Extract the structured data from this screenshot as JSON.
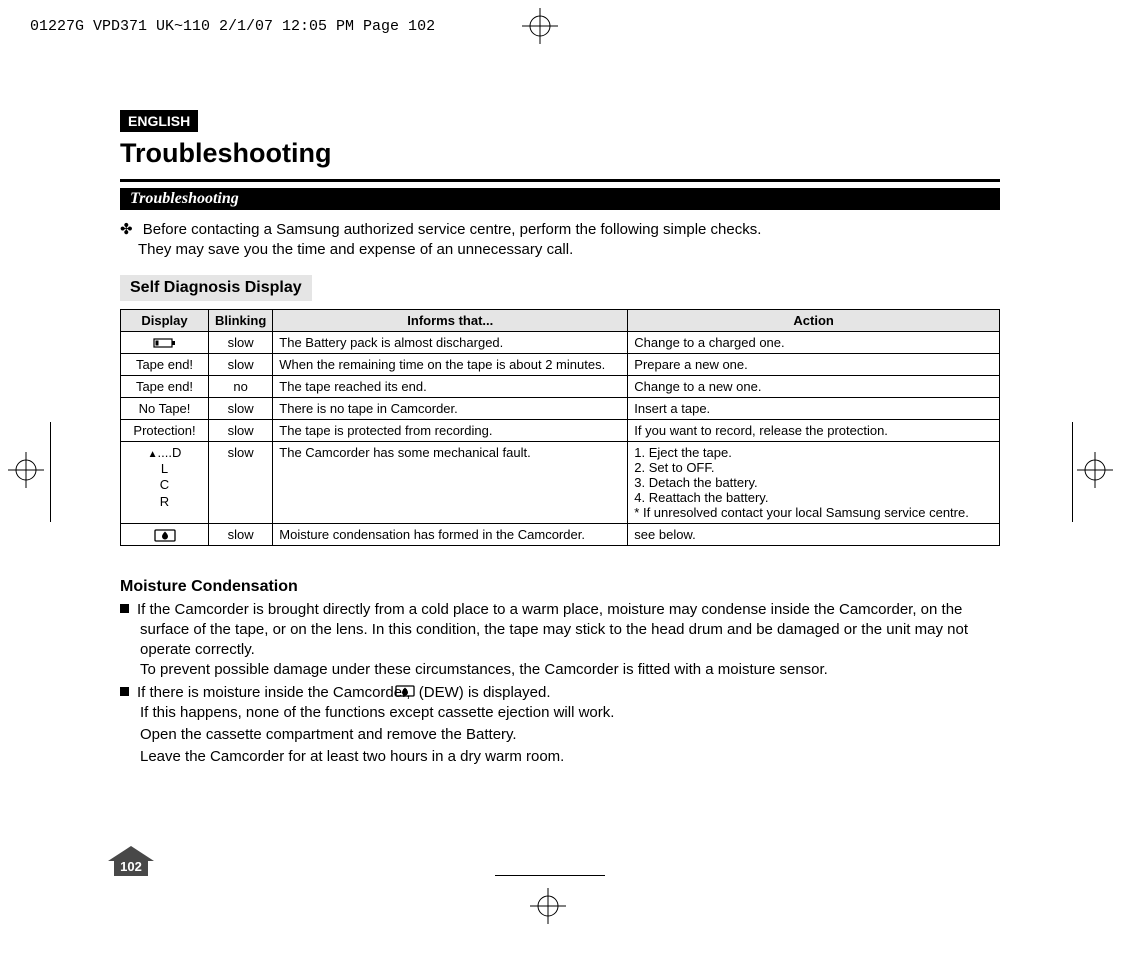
{
  "print_header": "01227G VPD371 UK~110  2/1/07 12:05 PM  Page 102",
  "lang_badge": "ENGLISH",
  "title": "Troubleshooting",
  "section_bar": "Troubleshooting",
  "intro_bullet": "✤",
  "intro_line1": "Before contacting a Samsung authorized service centre, perform the following simple checks.",
  "intro_line2": "They may save you the time and expense of an unnecessary call.",
  "subsection": "Self Diagnosis Display",
  "table": {
    "columns": [
      "Display",
      "Blinking",
      "Informs that...",
      "Action"
    ],
    "col_widths": [
      "88px",
      "60px",
      "355px",
      "auto"
    ],
    "rows": [
      {
        "display_type": "battery",
        "blinking": "slow",
        "informs": "The Battery pack is almost discharged.",
        "action": "Change to a charged one."
      },
      {
        "display": "Tape end!",
        "blinking": "slow",
        "informs": "When the remaining time on the tape is about 2 minutes.",
        "action": "Prepare a new one."
      },
      {
        "display": "Tape end!",
        "blinking": "no",
        "informs": "The tape reached its end.",
        "action": "Change to a new one."
      },
      {
        "display": "No Tape!",
        "blinking": "slow",
        "informs": "There is no tape in Camcorder.",
        "action": "Insert a tape."
      },
      {
        "display": "Protection!",
        "blinking": "slow",
        "informs": "The tape is protected from recording.",
        "action": "If you want to record, release the protection."
      },
      {
        "display_type": "eject",
        "display": "....D\nL\nC\nR",
        "blinking": "slow",
        "informs": "The Camcorder has some mechanical fault.",
        "action": "1. Eject the tape.\n2. Set to OFF.\n3. Detach the battery.\n4. Reattach the battery.\n * If unresolved contact your local Samsung service centre."
      },
      {
        "display_type": "dew",
        "blinking": "slow",
        "informs": "Moisture condensation has formed in the Camcorder.",
        "action": "see below."
      }
    ]
  },
  "moisture": {
    "heading": "Moisture Condensation",
    "p1a": "If the Camcorder is brought directly from a cold place to a warm place, moisture may condense inside the Camcorder, on the surface of the tape, or on the lens. In this condition, the tape may stick to the head drum and be damaged or the unit may not operate correctly.",
    "p1b": "To prevent possible damage under these circumstances, the Camcorder is fitted with a moisture sensor.",
    "p2a": "If there is moisture inside the Camcorder, ",
    "p2a_after": " (DEW) is displayed.",
    "p2b": "If this happens, none of the functions except cassette ejection will work.",
    "p2c": "Open the cassette compartment and remove the Battery.",
    "p2d": "Leave the Camcorder for at least two hours in a dry warm room."
  },
  "page_number": "102",
  "colors": {
    "bg": "#ffffff",
    "text": "#000000",
    "header_bg": "#e5e5e5",
    "pagebadge": "#484848"
  }
}
